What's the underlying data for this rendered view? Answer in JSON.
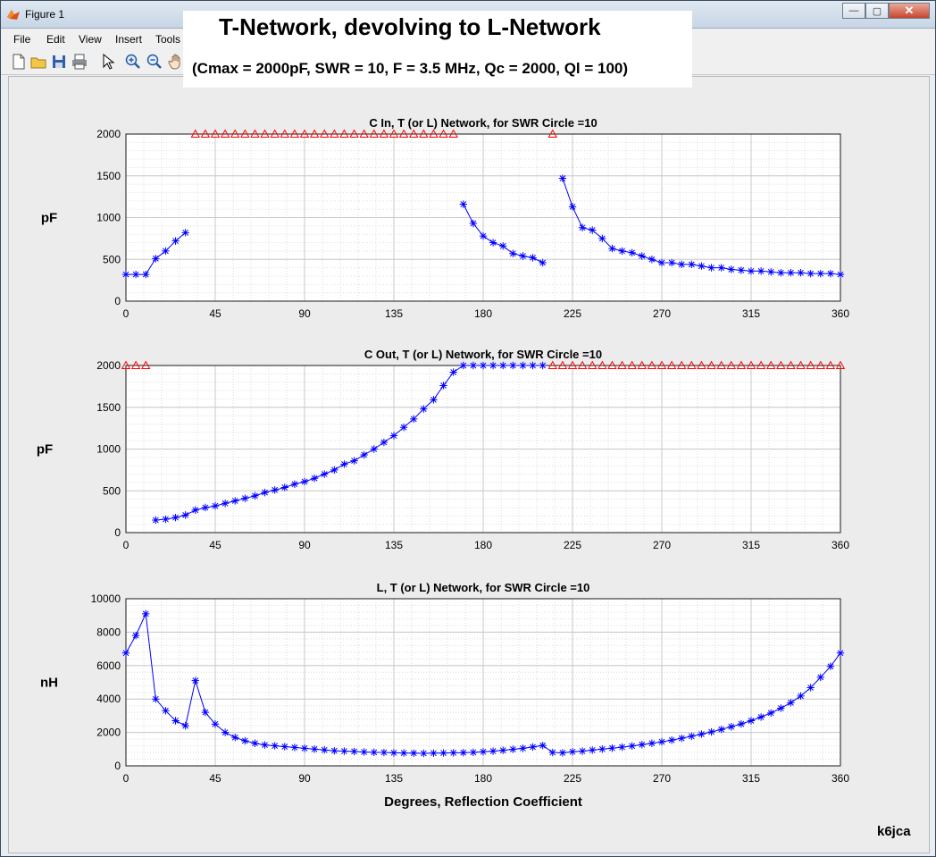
{
  "window": {
    "title": "Figure 1",
    "min": "—",
    "max": "▢",
    "close": "✕"
  },
  "menu": [
    "File",
    "Edit",
    "View",
    "Insert",
    "Tools"
  ],
  "banner": {
    "title": "T-Network, devolving to L-Network",
    "subtitle": "(Cmax = 2000pF, SWR = 10, F = 3.5 MHz, Qc = 2000, Ql = 100)"
  },
  "footer_label": "k6jca",
  "colors": {
    "series": "#0000ff",
    "limit_marker": "#ff0000",
    "grid": "#c8c8c8",
    "axes_bg": "#ffffff"
  },
  "chart_data": [
    {
      "type": "line",
      "title": "C In, T (or L) Network, for SWR Circle =10",
      "ylabel": "pF",
      "xlabel": "",
      "xlim": [
        0,
        360
      ],
      "ylim": [
        0,
        2000
      ],
      "xticks": [
        0,
        45,
        90,
        135,
        180,
        225,
        270,
        315,
        360
      ],
      "yticks": [
        0,
        500,
        1000,
        1500,
        2000
      ],
      "grid": true,
      "series": [
        {
          "marker": "*",
          "segments": [
            [
              [
                0,
                320
              ],
              [
                5,
                320
              ],
              [
                10,
                320
              ],
              [
                15,
                510
              ],
              [
                20,
                600
              ],
              [
                25,
                720
              ],
              [
                30,
                820
              ]
            ],
            [
              [
                170,
                1160
              ],
              [
                175,
                930
              ],
              [
                180,
                780
              ],
              [
                185,
                700
              ],
              [
                190,
                660
              ],
              [
                195,
                570
              ],
              [
                200,
                540
              ],
              [
                205,
                520
              ],
              [
                210,
                460
              ]
            ],
            [
              [
                220,
                1470
              ],
              [
                225,
                1130
              ],
              [
                230,
                880
              ],
              [
                235,
                850
              ],
              [
                240,
                750
              ],
              [
                245,
                630
              ],
              [
                250,
                600
              ],
              [
                255,
                580
              ],
              [
                260,
                540
              ],
              [
                265,
                500
              ],
              [
                270,
                460
              ],
              [
                275,
                460
              ],
              [
                280,
                440
              ],
              [
                285,
                440
              ],
              [
                290,
                420
              ],
              [
                295,
                400
              ],
              [
                300,
                400
              ],
              [
                305,
                380
              ],
              [
                310,
                370
              ],
              [
                315,
                360
              ],
              [
                320,
                360
              ],
              [
                325,
                350
              ],
              [
                330,
                340
              ],
              [
                335,
                340
              ],
              [
                340,
                340
              ],
              [
                345,
                330
              ],
              [
                350,
                330
              ],
              [
                355,
                330
              ],
              [
                360,
                320
              ]
            ]
          ]
        },
        {
          "marker": "triangle",
          "points": [
            [
              35,
              2000
            ],
            [
              40,
              2000
            ],
            [
              45,
              2000
            ],
            [
              50,
              2000
            ],
            [
              55,
              2000
            ],
            [
              60,
              2000
            ],
            [
              65,
              2000
            ],
            [
              70,
              2000
            ],
            [
              75,
              2000
            ],
            [
              80,
              2000
            ],
            [
              85,
              2000
            ],
            [
              90,
              2000
            ],
            [
              95,
              2000
            ],
            [
              100,
              2000
            ],
            [
              105,
              2000
            ],
            [
              110,
              2000
            ],
            [
              115,
              2000
            ],
            [
              120,
              2000
            ],
            [
              125,
              2000
            ],
            [
              130,
              2000
            ],
            [
              135,
              2000
            ],
            [
              140,
              2000
            ],
            [
              145,
              2000
            ],
            [
              150,
              2000
            ],
            [
              155,
              2000
            ],
            [
              160,
              2000
            ],
            [
              165,
              2000
            ],
            [
              215,
              2000
            ]
          ]
        }
      ]
    },
    {
      "type": "line",
      "title": "C Out, T (or L) Network, for SWR Circle =10",
      "ylabel": "pF",
      "xlabel": "",
      "xlim": [
        0,
        360
      ],
      "ylim": [
        0,
        2000
      ],
      "xticks": [
        0,
        45,
        90,
        135,
        180,
        225,
        270,
        315,
        360
      ],
      "yticks": [
        0,
        500,
        1000,
        1500,
        2000
      ],
      "grid": true,
      "series": [
        {
          "marker": "*",
          "segments": [
            [
              [
                15,
                150
              ],
              [
                20,
                160
              ],
              [
                25,
                180
              ],
              [
                30,
                210
              ],
              [
                35,
                270
              ],
              [
                40,
                300
              ],
              [
                45,
                320
              ],
              [
                50,
                350
              ],
              [
                55,
                380
              ],
              [
                60,
                410
              ],
              [
                65,
                440
              ],
              [
                70,
                480
              ],
              [
                75,
                510
              ],
              [
                80,
                540
              ],
              [
                85,
                580
              ],
              [
                90,
                610
              ],
              [
                95,
                650
              ],
              [
                100,
                700
              ],
              [
                105,
                750
              ],
              [
                110,
                820
              ],
              [
                115,
                860
              ],
              [
                120,
                930
              ],
              [
                125,
                1000
              ],
              [
                130,
                1080
              ],
              [
                135,
                1160
              ],
              [
                140,
                1260
              ],
              [
                145,
                1360
              ],
              [
                150,
                1480
              ],
              [
                155,
                1590
              ],
              [
                160,
                1760
              ],
              [
                165,
                1920
              ],
              [
                170,
                2000
              ],
              [
                175,
                2000
              ],
              [
                180,
                2000
              ],
              [
                185,
                2000
              ],
              [
                190,
                2000
              ],
              [
                195,
                2000
              ],
              [
                200,
                2000
              ],
              [
                205,
                2000
              ],
              [
                210,
                2000
              ]
            ]
          ]
        },
        {
          "marker": "triangle",
          "points": [
            [
              0,
              2000
            ],
            [
              5,
              2000
            ],
            [
              10,
              2000
            ],
            [
              215,
              2000
            ],
            [
              220,
              2000
            ],
            [
              225,
              2000
            ],
            [
              230,
              2000
            ],
            [
              235,
              2000
            ],
            [
              240,
              2000
            ],
            [
              245,
              2000
            ],
            [
              250,
              2000
            ],
            [
              255,
              2000
            ],
            [
              260,
              2000
            ],
            [
              265,
              2000
            ],
            [
              270,
              2000
            ],
            [
              275,
              2000
            ],
            [
              280,
              2000
            ],
            [
              285,
              2000
            ],
            [
              290,
              2000
            ],
            [
              295,
              2000
            ],
            [
              300,
              2000
            ],
            [
              305,
              2000
            ],
            [
              310,
              2000
            ],
            [
              315,
              2000
            ],
            [
              320,
              2000
            ],
            [
              325,
              2000
            ],
            [
              330,
              2000
            ],
            [
              335,
              2000
            ],
            [
              340,
              2000
            ],
            [
              345,
              2000
            ],
            [
              350,
              2000
            ],
            [
              355,
              2000
            ],
            [
              360,
              2000
            ]
          ]
        }
      ]
    },
    {
      "type": "line",
      "title": "L, T (or L) Network, for SWR Circle =10",
      "ylabel": "nH",
      "xlabel": "Degrees, Reflection Coefficient",
      "xlim": [
        0,
        360
      ],
      "ylim": [
        0,
        10000
      ],
      "xticks": [
        0,
        45,
        90,
        135,
        180,
        225,
        270,
        315,
        360
      ],
      "yticks": [
        0,
        2000,
        4000,
        6000,
        8000,
        10000
      ],
      "grid": true,
      "series": [
        {
          "marker": "*",
          "segments": [
            [
              [
                0,
                6750
              ],
              [
                5,
                7800
              ],
              [
                10,
                9100
              ],
              [
                15,
                4000
              ],
              [
                20,
                3300
              ],
              [
                25,
                2700
              ],
              [
                30,
                2400
              ],
              [
                35,
                5100
              ],
              [
                40,
                3200
              ],
              [
                45,
                2500
              ],
              [
                50,
                2000
              ],
              [
                55,
                1700
              ],
              [
                60,
                1500
              ],
              [
                65,
                1350
              ],
              [
                70,
                1250
              ],
              [
                75,
                1200
              ],
              [
                80,
                1150
              ],
              [
                85,
                1100
              ],
              [
                90,
                1050
              ],
              [
                95,
                1000
              ],
              [
                100,
                950
              ],
              [
                105,
                900
              ],
              [
                110,
                880
              ],
              [
                115,
                860
              ],
              [
                120,
                830
              ],
              [
                125,
                810
              ],
              [
                130,
                800
              ],
              [
                135,
                780
              ],
              [
                140,
                770
              ],
              [
                145,
                760
              ],
              [
                150,
                750
              ],
              [
                155,
                760
              ],
              [
                160,
                770
              ],
              [
                165,
                780
              ],
              [
                170,
                790
              ],
              [
                175,
                810
              ],
              [
                180,
                840
              ],
              [
                185,
                880
              ],
              [
                190,
                930
              ],
              [
                195,
                990
              ],
              [
                200,
                1050
              ],
              [
                205,
                1130
              ],
              [
                210,
                1220
              ],
              [
                215,
                800
              ],
              [
                220,
                780
              ],
              [
                225,
                840
              ],
              [
                230,
                880
              ],
              [
                235,
                940
              ],
              [
                240,
                1000
              ],
              [
                245,
                1060
              ],
              [
                250,
                1120
              ],
              [
                255,
                1190
              ],
              [
                260,
                1270
              ],
              [
                265,
                1350
              ],
              [
                270,
                1440
              ],
              [
                275,
                1540
              ],
              [
                280,
                1650
              ],
              [
                285,
                1770
              ],
              [
                290,
                1900
              ],
              [
                295,
                2030
              ],
              [
                300,
                2180
              ],
              [
                305,
                2340
              ],
              [
                310,
                2510
              ],
              [
                315,
                2700
              ],
              [
                320,
                2920
              ],
              [
                325,
                3160
              ],
              [
                330,
                3450
              ],
              [
                335,
                3780
              ],
              [
                340,
                4180
              ],
              [
                345,
                4680
              ],
              [
                350,
                5300
              ],
              [
                355,
                5950
              ],
              [
                360,
                6750
              ]
            ]
          ]
        }
      ]
    }
  ]
}
